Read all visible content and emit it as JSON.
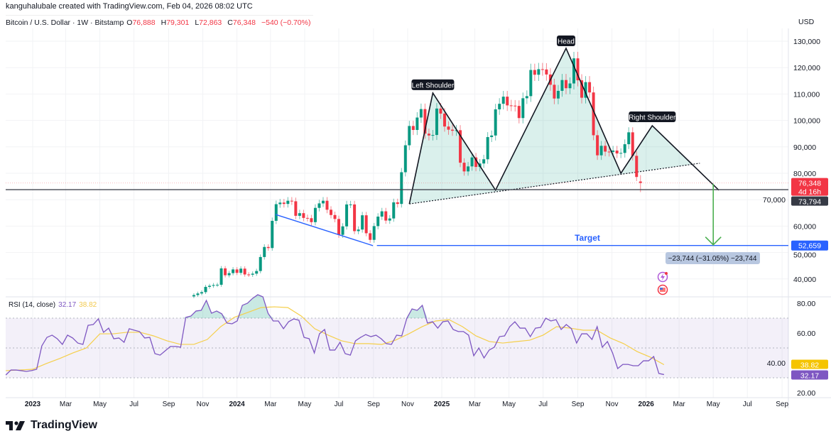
{
  "header": {
    "credit": "kanguhalubale created with TradingView.com, Feb 04, 2026 08:02 UTC",
    "symbol": "Bitcoin / U.S. Dollar · 1W · Bitstamp",
    "open_label": "O",
    "open": "76,888",
    "high_label": "H",
    "high": "79,301",
    "low_label": "L",
    "low": "72,863",
    "close_label": "C",
    "close": "76,348",
    "change": "−540 (−0.70%)",
    "currency": "USD"
  },
  "rsi_legend": {
    "label": "RSI (14, close)",
    "rsi": "32.17",
    "ma": "38.82"
  },
  "badges": {
    "last_price": "76,348",
    "countdown": "4d 16h",
    "neckline_level": "73,794",
    "target_level": "52,659",
    "rsi_value": "32.17",
    "rsi_ma_value": "38.82"
  },
  "annotations": {
    "left_shoulder": "Left Shoulder",
    "head": "Head",
    "right_shoulder": "Right Shoulder",
    "target": "Target",
    "measure": "−23,744 (−31.05%) −23,744"
  },
  "logo": "TradingView",
  "colors": {
    "up": "#089981",
    "down": "#f23645",
    "rsi": "#7e57c2",
    "rsi_ma": "#f5cf4b",
    "target": "#2962ff",
    "arrow": "#4caf50",
    "pattern_fill": "#089981"
  },
  "chart_data": [
    {
      "type": "candlestick",
      "title": "Bitcoin / U.S. Dollar · 1W · Bitstamp",
      "interval": "1W",
      "start_week": "2023-10-16",
      "closes": [
        33900,
        34500,
        35000,
        37000,
        37400,
        37700,
        37800,
        44000,
        41400,
        42200,
        43600,
        42300,
        43900,
        41700,
        41600,
        42000,
        43000,
        48300,
        52100,
        51700,
        62000,
        68300,
        68900,
        68400,
        69600,
        69400,
        63900,
        64900,
        63100,
        63000,
        61500,
        66900,
        68600,
        69600,
        66200,
        64200,
        62700,
        56700,
        59900,
        68200,
        68200,
        58100,
        58700,
        64100,
        57300,
        54800,
        60000,
        63600,
        65600,
        62100,
        62900,
        69000,
        68400,
        80400,
        90600,
        97900,
        96400,
        101100,
        104300,
        95000,
        94300,
        94500,
        104500,
        102600,
        97700,
        96500,
        96100,
        96300,
        84000,
        80700,
        82600,
        86000,
        82400,
        83700,
        85300,
        93700,
        94300,
        104200,
        106300,
        109000,
        105700,
        105600,
        105500,
        100900,
        108400,
        109200,
        119100,
        117300,
        119400,
        119300,
        117400,
        113500,
        108300,
        111200,
        115300,
        112200,
        114000,
        123500,
        115200,
        108600,
        114500,
        110600,
        94400,
        86800,
        90400,
        88200,
        88100,
        88600,
        87500,
        87700,
        91000,
        95500,
        86600,
        78600,
        76348
      ],
      "last_candle": {
        "date": "2026-02-02",
        "open": 76888,
        "high": 79301,
        "low": 72863,
        "close": 76348
      },
      "y_axis": {
        "label": "USD",
        "ticks": [
          40000,
          50000,
          60000,
          70000,
          80000,
          90000,
          100000,
          110000,
          120000,
          130000
        ],
        "tick_labels": [
          "40,000",
          "50,000",
          "60,000",
          "70,000",
          "80,000",
          "90,000",
          "100,000",
          "110,000",
          "120,000",
          "130,000"
        ],
        "range": [
          35000,
          135000
        ],
        "scale": "linear"
      },
      "levels": {
        "last_price": 76348,
        "neckline_horizontal": 73794,
        "target": 52659
      },
      "head_and_shoulders": [
        {
          "date": "2024-11-04",
          "price": 68400
        },
        {
          "date": "2024-12-16",
          "price": 110400
        },
        {
          "date": "2025-04-07",
          "price": 73600
        },
        {
          "date": "2025-08-11",
          "price": 127300
        },
        {
          "date": "2025-11-17",
          "price": 80000
        },
        {
          "date": "2026-01-12",
          "price": 98000
        },
        {
          "date": "2026-05-11",
          "price": 73600
        }
      ],
      "neckline": [
        {
          "date": "2024-11-04",
          "price": 68400
        },
        {
          "date": "2026-04-07",
          "price": 83800
        }
      ],
      "descending_line": [
        {
          "date": "2024-03-10",
          "price": 64400
        },
        {
          "date": "2024-08-31",
          "price": 52600
        }
      ],
      "target_line_start": "2024-09-07",
      "arrow": {
        "date": "2026-05-01",
        "from": 76000,
        "to": 52659
      }
    },
    {
      "type": "line",
      "title": "RSI (14, close)",
      "start": "2022-11-14",
      "end": "2026-02-02",
      "y_axis": {
        "ticks": [
          20,
          40,
          60,
          80
        ],
        "tick_labels": [
          "20.00",
          "40.00",
          "60.00",
          "80.00"
        ],
        "range": [
          15,
          85
        ]
      },
      "bands": {
        "upper": 70,
        "middle": 50,
        "lower": 30
      },
      "series": [
        {
          "name": "RSI",
          "values": [
            31.9,
            35.2,
            35.2,
            34.8,
            34.3,
            34.8,
            35.7,
            51.4,
            57.1,
            58.6,
            56.2,
            52.4,
            58.6,
            56.7,
            53.3,
            52.4,
            65.2,
            65.7,
            69.5,
            60.5,
            63.3,
            56.2,
            56.7,
            53.8,
            62.9,
            61.9,
            61,
            56.7,
            57.1,
            46.2,
            45.2,
            48.1,
            51,
            51,
            50.5,
            70.5,
            71.4,
            74.8,
            75.2,
            81.9,
            73.3,
            74.8,
            72.9,
            66.7,
            66.2,
            68.1,
            78.6,
            80,
            83.3,
            85.7,
            84.3,
            73.3,
            68.1,
            68.1,
            62.9,
            67.6,
            69.5,
            68.6,
            57.1,
            56.2,
            46.7,
            59.5,
            62.4,
            48.6,
            48.6,
            53.8,
            46.2,
            45.2,
            54.8,
            57.1,
            59,
            57.6,
            58.6,
            56.2,
            52.9,
            52.4,
            58.6,
            58.1,
            70,
            76.2,
            75.2,
            78.6,
            66.7,
            67.6,
            63.3,
            67.6,
            68.1,
            62.4,
            61,
            61,
            58.6,
            44.8,
            50,
            43.3,
            48.6,
            50.5,
            57.6,
            58.1,
            64.3,
            67.6,
            63.3,
            63.3,
            57.6,
            63.3,
            63.8,
            70,
            68.1,
            69,
            62.4,
            65.7,
            62.9,
            53.3,
            59.5,
            59.5,
            55.7,
            64.3,
            50.5,
            54.3,
            46.7,
            36.2,
            39,
            39,
            38.1,
            38.1,
            41.4,
            41.4,
            44.3,
            32.9,
            32.17
          ]
        },
        {
          "name": "RSI-based MA",
          "values": [
            34.8,
            35.2,
            35.7,
            39.5,
            42.9,
            46.7,
            50,
            59.5,
            59.5,
            60.5,
            60.5,
            58.1,
            54.8,
            52.4,
            52.4,
            55.7,
            64.3,
            70.5,
            73.8,
            77.1,
            77.6,
            77.1,
            71.4,
            62.9,
            58.6,
            54.8,
            52.9,
            52.9,
            52.4,
            55.2,
            59.5,
            64.3,
            68.1,
            69,
            64.3,
            58.1,
            54.3,
            53.3,
            54.3,
            55.2,
            58.6,
            64.3,
            63.3,
            61.9,
            61.9,
            56.7,
            52.9,
            47.6,
            43.8,
            38.82
          ]
        }
      ]
    }
  ],
  "time_axis": [
    {
      "date": "2023-01-01",
      "label": "2023",
      "year": true
    },
    {
      "date": "2023-03-01",
      "label": "Mar"
    },
    {
      "date": "2023-05-01",
      "label": "May"
    },
    {
      "date": "2023-07-01",
      "label": "Jul"
    },
    {
      "date": "2023-09-01",
      "label": "Sep"
    },
    {
      "date": "2023-11-01",
      "label": "Nov"
    },
    {
      "date": "2024-01-01",
      "label": "2024",
      "year": true
    },
    {
      "date": "2024-03-01",
      "label": "Mar"
    },
    {
      "date": "2024-05-01",
      "label": "May"
    },
    {
      "date": "2024-07-01",
      "label": "Jul"
    },
    {
      "date": "2024-09-01",
      "label": "Sep"
    },
    {
      "date": "2024-11-01",
      "label": "Nov"
    },
    {
      "date": "2025-01-01",
      "label": "2025",
      "year": true
    },
    {
      "date": "2025-03-01",
      "label": "Mar"
    },
    {
      "date": "2025-05-01",
      "label": "May"
    },
    {
      "date": "2025-07-01",
      "label": "Jul"
    },
    {
      "date": "2025-09-01",
      "label": "Sep"
    },
    {
      "date": "2025-11-01",
      "label": "Nov"
    },
    {
      "date": "2026-01-01",
      "label": "2026",
      "year": true
    },
    {
      "date": "2026-03-01",
      "label": "Mar"
    },
    {
      "date": "2026-05-01",
      "label": "May"
    },
    {
      "date": "2026-07-01",
      "label": "Jul"
    },
    {
      "date": "2026-09-01",
      "label": "Sep"
    }
  ]
}
